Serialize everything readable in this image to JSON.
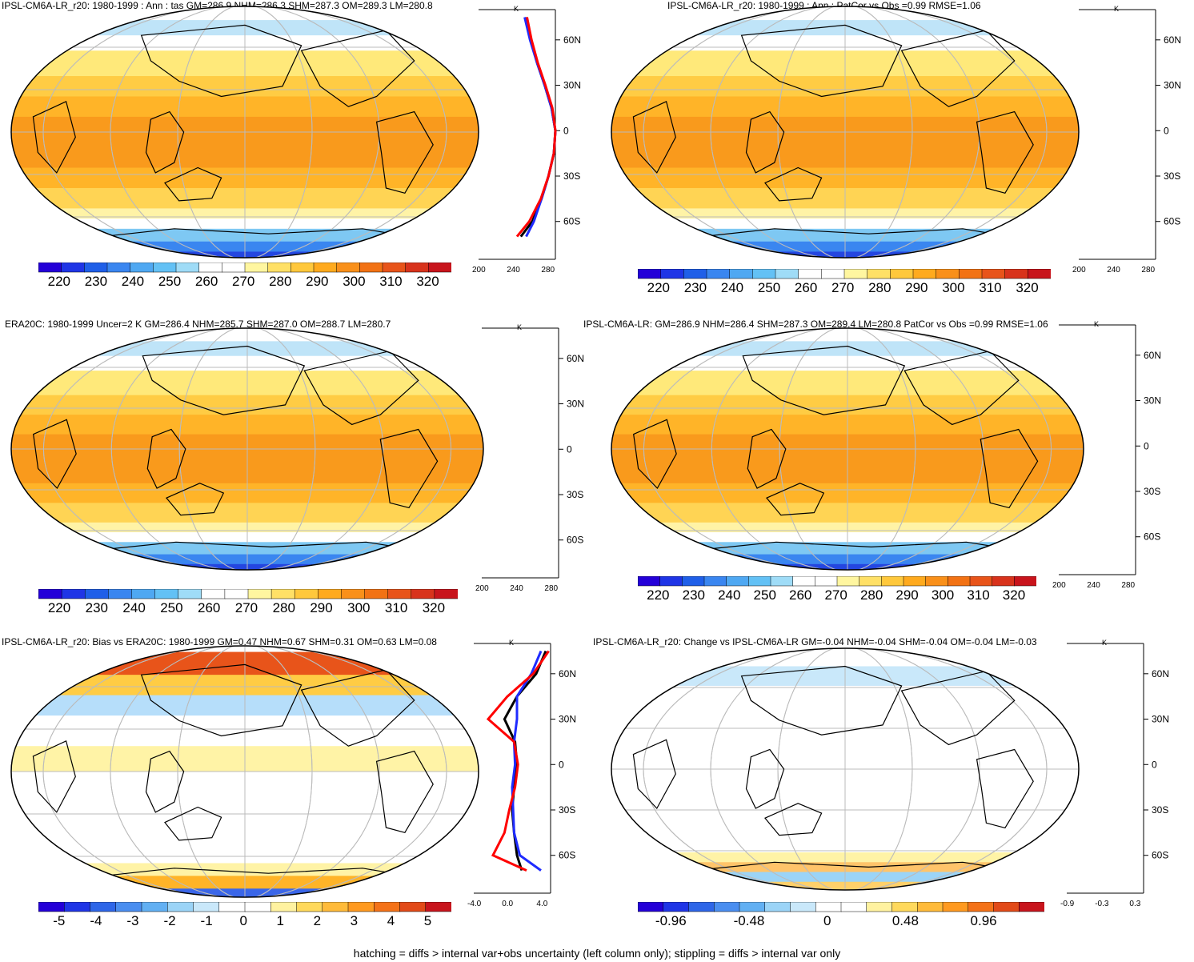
{
  "footnote": "hatching = diffs > internal var+obs uncertainty (left column only); stippling = diffs > internal var only",
  "zonal_lat_labels": [
    "60N",
    "30N",
    "0",
    "30S",
    "60S"
  ],
  "zonal_unit": "K",
  "colors": {
    "abs_scale": [
      "#2400d8",
      "#1f35e6",
      "#1f5fe8",
      "#3a86f0",
      "#4fa8f2",
      "#63c1f5",
      "#9fdcf7",
      "#ffffff",
      "#ffffff",
      "#fff6a0",
      "#ffe066",
      "#ffc83c",
      "#ffaa1e",
      "#f9901a",
      "#f27214",
      "#e8541a",
      "#d8331c",
      "#c8141c"
    ],
    "diff_scale": [
      "#2400d8",
      "#1f35e6",
      "#2e66e8",
      "#4a8ef0",
      "#62b0f3",
      "#9bd4f7",
      "#c9e8fa",
      "#ffffff",
      "#ffffff",
      "#fff2a0",
      "#ffd95c",
      "#ffbb3a",
      "#ff9a20",
      "#f47218",
      "#e24a18",
      "#c8141c"
    ],
    "line_obs": "#000000",
    "line_model": "#1f2bff",
    "line_alt": "#ff0000"
  },
  "panels": [
    {
      "title": "IPSL-CM6A-LR_r20: 1980-1999 : Ann : tas GM=286.9 NHM=286.3 SHM=287.3 OM=289.3 LM=280.8",
      "colorbar_labels": [
        "220",
        "230",
        "240",
        "250",
        "260",
        "270",
        "280",
        "290",
        "300",
        "310",
        "320"
      ],
      "zonal_x_labels": [
        "200",
        "240",
        "280"
      ],
      "kind": "abs"
    },
    {
      "title": "IPSL-CM6A-LR_r20: 1980-1999 : Ann : PatCor vs Obs =0.99 RMSE=1.06",
      "colorbar_labels": [
        "220",
        "230",
        "240",
        "250",
        "260",
        "270",
        "280",
        "290",
        "300",
        "310",
        "320"
      ],
      "zonal_x_labels": [
        "200",
        "240",
        "280"
      ],
      "kind": "abs"
    },
    {
      "title": "ERA20C: 1980-1999 Uncer=2 K GM=286.4 NHM=285.7 SHM=287.0 OM=288.7 LM=280.7",
      "colorbar_labels": [
        "220",
        "230",
        "240",
        "250",
        "260",
        "270",
        "280",
        "290",
        "300",
        "310",
        "320"
      ],
      "zonal_x_labels": [
        "200",
        "240",
        "280"
      ],
      "kind": "abs"
    },
    {
      "title": "IPSL-CM6A-LR: GM=286.9 NHM=286.4 SHM=287.3 OM=289.4 LM=280.8 PatCor vs Obs =0.99 RMSE=1.06",
      "colorbar_labels": [
        "220",
        "230",
        "240",
        "250",
        "260",
        "270",
        "280",
        "290",
        "300",
        "310",
        "320"
      ],
      "zonal_x_labels": [
        "200",
        "240",
        "280"
      ],
      "kind": "abs"
    },
    {
      "title": "IPSL-CM6A-LR_r20: Bias vs ERA20C: 1980-1999 GM=0.47 NHM=0.67 SHM=0.31 OM=0.63 LM=0.08",
      "colorbar_labels": [
        "-5",
        "-4",
        "-3",
        "-2",
        "-1",
        "0",
        "1",
        "2",
        "3",
        "4",
        "5"
      ],
      "zonal_x_labels": [
        "-4.0",
        "0.0",
        "4.0"
      ],
      "kind": "bias"
    },
    {
      "title": "IPSL-CM6A-LR_r20: Change vs IPSL-CM6A-LR GM=-0.04 NHM=-0.04 SHM=-0.04 OM=-0.04 LM=-0.03",
      "colorbar_labels": [
        "-0.96",
        "-0.48",
        "0",
        "0.48",
        "0.96"
      ],
      "zonal_x_labels": [
        "-0.9",
        "-0.3",
        "0.3"
      ],
      "kind": "change"
    }
  ],
  "chart_data": [
    {
      "type": "heatmap",
      "title": "IPSL-CM6A-LR_r20: 1980-1999 : Ann : tas GM=286.9 NHM=286.3 SHM=287.3 OM=289.3 LM=280.8",
      "colorbar_ticks": [
        220,
        230,
        240,
        250,
        260,
        270,
        280,
        290,
        300,
        310,
        320
      ],
      "zonal_profile": {
        "lat": [
          75,
          60,
          45,
          30,
          15,
          0,
          -15,
          -30,
          -45,
          -60,
          -70
        ],
        "series": [
          {
            "values": [
              262,
              268,
              276,
              286,
              295,
              300,
              298,
              291,
              282,
              270,
              255
            ]
          },
          {
            "values": [
              260,
              267,
              276,
              286,
              295,
              300,
              298,
              291,
              282,
              272,
              262
            ]
          },
          {
            "values": [
              263,
              269,
              277,
              287,
              296,
              300,
              298,
              291,
              281,
              266,
              250
            ]
          }
        ],
        "xlim": [
          200,
          300
        ]
      }
    },
    {
      "type": "heatmap",
      "title": "IPSL-CM6A-LR_r20: 1980-1999 : Ann : PatCor vs Obs =0.99 RMSE=1.06",
      "colorbar_ticks": [
        220,
        230,
        240,
        250,
        260,
        270,
        280,
        290,
        300,
        310,
        320
      ]
    },
    {
      "type": "heatmap",
      "title": "ERA20C: 1980-1999 Uncer=2 K GM=286.4 NHM=285.7 SHM=287.0 OM=288.7 LM=280.7",
      "colorbar_ticks": [
        220,
        230,
        240,
        250,
        260,
        270,
        280,
        290,
        300,
        310,
        320
      ]
    },
    {
      "type": "heatmap",
      "title": "IPSL-CM6A-LR: GM=286.9 NHM=286.4 SHM=287.3 OM=289.4 LM=280.8 PatCor vs Obs =0.99 RMSE=1.06",
      "colorbar_ticks": [
        220,
        230,
        240,
        250,
        260,
        270,
        280,
        290,
        300,
        310,
        320
      ]
    },
    {
      "type": "heatmap",
      "title": "IPSL-CM6A-LR_r20: Bias vs ERA20C: 1980-1999 GM=0.47 NHM=0.67 SHM=0.31 OM=0.63 LM=0.08",
      "colorbar_ticks": [
        -5,
        -4,
        -3,
        -2,
        -1,
        0,
        1,
        2,
        3,
        4,
        5
      ],
      "zonal_profile": {
        "lat": [
          75,
          60,
          45,
          30,
          15,
          0,
          -15,
          -30,
          -45,
          -60,
          -70
        ],
        "series": [
          {
            "values": [
              3.5,
              2.5,
              0.5,
              -0.8,
              0.3,
              0.5,
              0.2,
              0.0,
              0.2,
              0.5,
              1.0
            ]
          },
          {
            "values": [
              3.0,
              2.0,
              0.5,
              0.5,
              0.2,
              0.3,
              0.0,
              0.1,
              0.2,
              0.8,
              3.0
            ]
          },
          {
            "values": [
              3.8,
              2.2,
              -0.5,
              -2.5,
              0.2,
              0.6,
              0.3,
              -0.3,
              -0.8,
              -2.0,
              1.5
            ]
          }
        ],
        "xlim": [
          -4,
          4
        ]
      }
    },
    {
      "type": "heatmap",
      "title": "IPSL-CM6A-LR_r20: Change vs IPSL-CM6A-LR GM=-0.04 NHM=-0.04 SHM=-0.04 OM=-0.04 LM=-0.03",
      "colorbar_ticks": [
        -0.96,
        -0.48,
        0,
        0.48,
        0.96
      ]
    }
  ]
}
